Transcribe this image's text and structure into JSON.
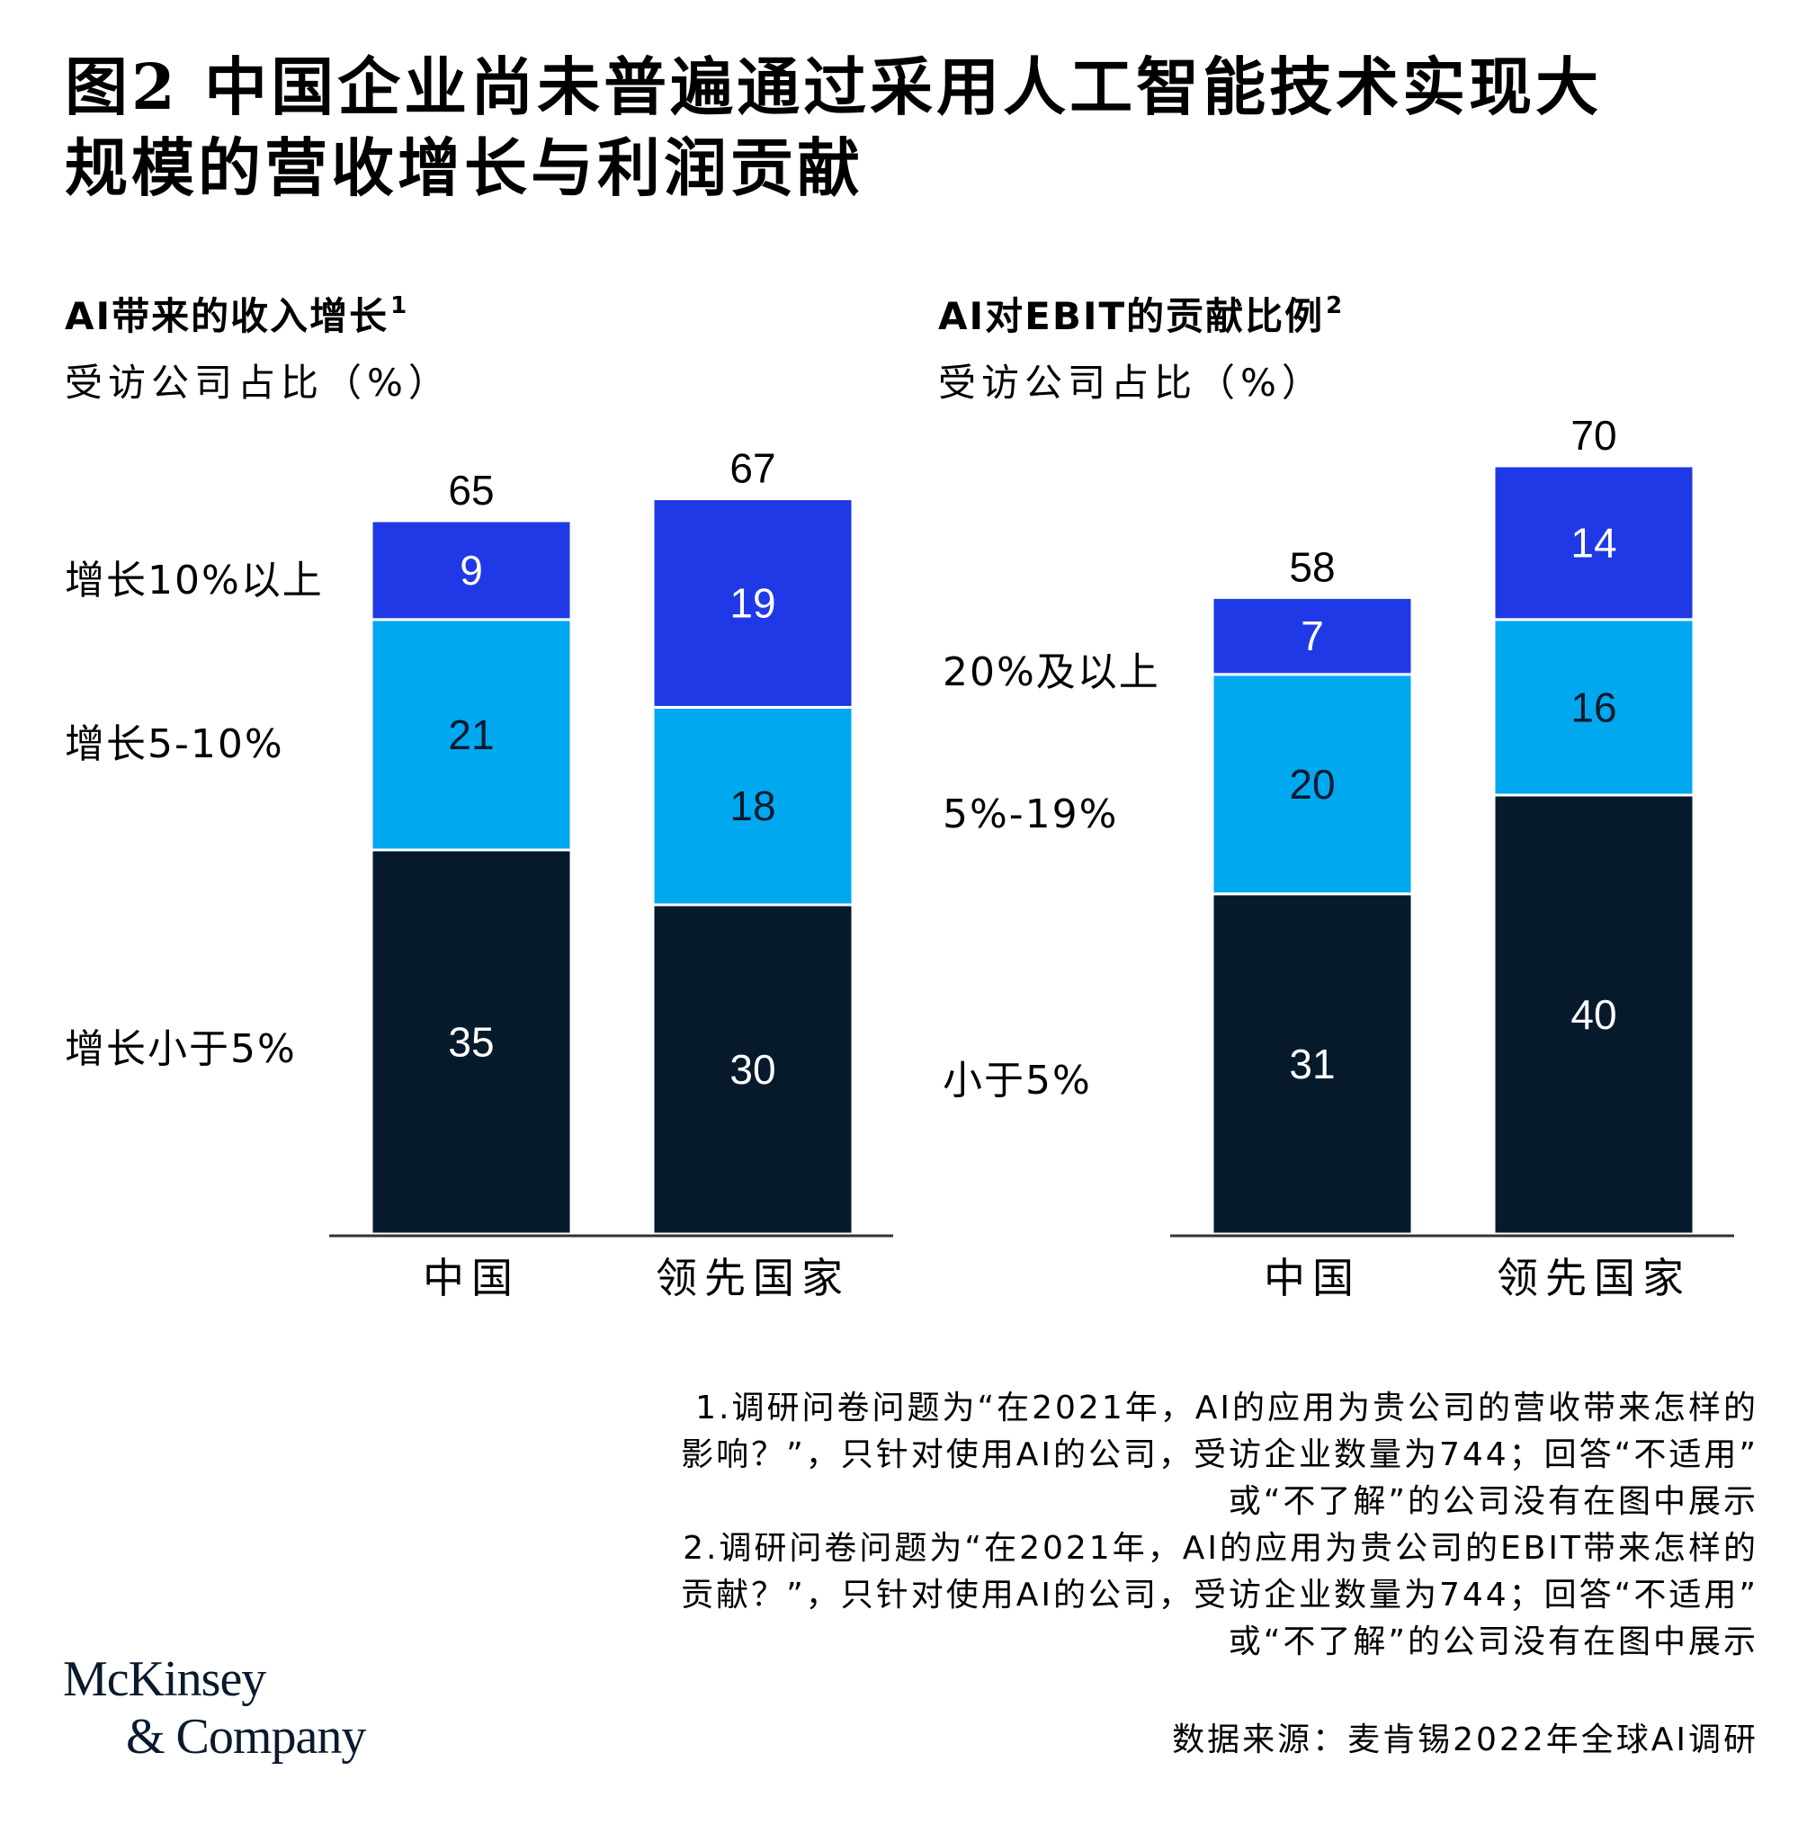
{
  "title_lines": [
    "图2 中国企业尚未普遍通过采用人工智能技术实现大",
    "规模的营收增长与利润贡献"
  ],
  "colors": {
    "top": "#2039e6",
    "middle": "#00a8f0",
    "bottom": "#061a2c",
    "axis": "#333333",
    "text": "#000000"
  },
  "chart_data": [
    {
      "type": "bar",
      "stacked": true,
      "title": "AI带来的收入增长",
      "title_sup": "1",
      "subtitle": "受访公司占比（%）",
      "categories": [
        "中国",
        "领先国家"
      ],
      "series": [
        {
          "name": "增长小于5%",
          "values": [
            35,
            30
          ]
        },
        {
          "name": "增长5-10%",
          "values": [
            21,
            18
          ]
        },
        {
          "name": "增长10%以上",
          "values": [
            9,
            19
          ]
        }
      ],
      "totals": [
        65,
        67
      ],
      "legend": "left"
    },
    {
      "type": "bar",
      "stacked": true,
      "title": "AI对EBIT的贡献比例",
      "title_sup": "2",
      "subtitle": "受访公司占比（%）",
      "categories": [
        "中国",
        "领先国家"
      ],
      "series": [
        {
          "name": "小于5%",
          "values": [
            31,
            40
          ]
        },
        {
          "name": "5%-19%",
          "values": [
            20,
            16
          ]
        },
        {
          "name": "20%及以上",
          "values": [
            7,
            14
          ]
        }
      ],
      "totals": [
        58,
        70
      ],
      "legend": "left"
    }
  ],
  "footnotes": [
    "1.调研问卷问题为“在2021年，AI的应用为贵公司的营收带来怎样的",
    "影响？”，只针对使用AI的公司，受访企业数量为744；回答“不适用”",
    "或“不了解”的公司没有在图中展示",
    "2.调研问卷问题为“在2021年，AI的应用为贵公司的EBIT带来怎样的",
    "贡献？”，只针对使用AI的公司，受访企业数量为744；回答“不适用”",
    "或“不了解”的公司没有在图中展示"
  ],
  "source": "数据来源：麦肯锡2022年全球AI调研",
  "logo": {
    "line1": "McKinsey",
    "line2": "& Company"
  }
}
